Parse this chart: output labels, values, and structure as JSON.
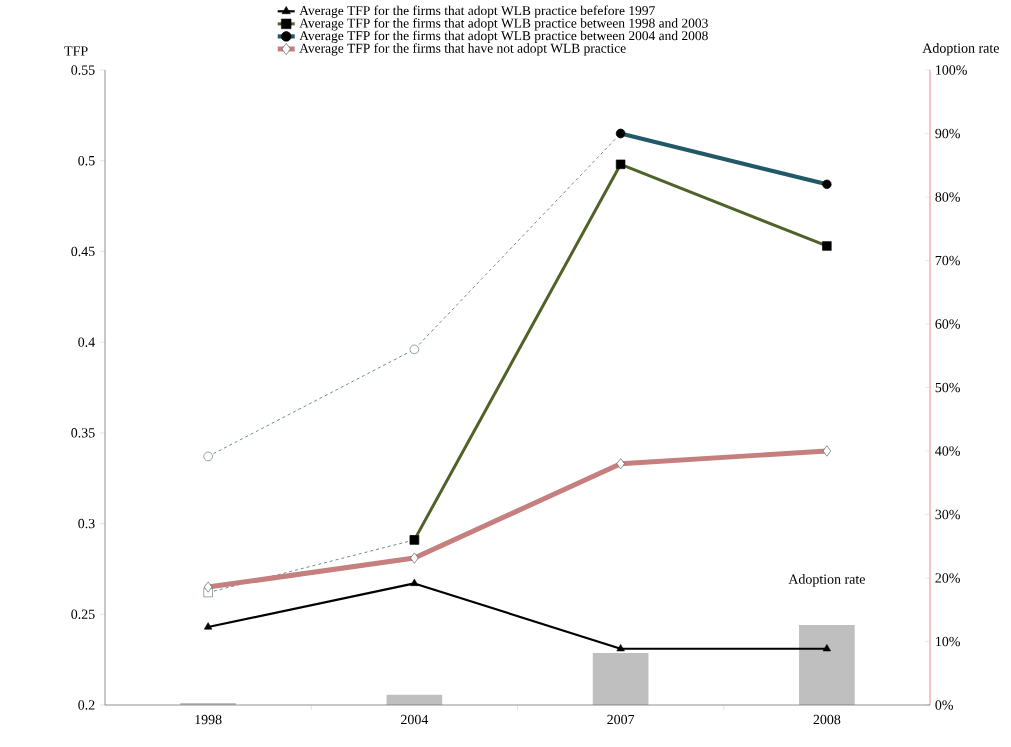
{
  "chart_data": {
    "type": "line",
    "ylabel": "TFP",
    "y2label": "Adoption rate",
    "categories": [
      "1998",
      "2004",
      "2007",
      "2008"
    ],
    "ylim": [
      0.2,
      0.55
    ],
    "yticks": [
      0.2,
      0.25,
      0.3,
      0.35,
      0.4,
      0.45,
      0.5,
      0.55
    ],
    "y2lim": [
      0,
      100
    ],
    "y2ticks": [
      {
        "value": 0,
        "label": "0%"
      },
      {
        "value": 10,
        "label": "10%"
      },
      {
        "value": 20,
        "label": "20%"
      },
      {
        "value": 30,
        "label": "30%"
      },
      {
        "value": 40,
        "label": "40%"
      },
      {
        "value": 50,
        "label": "50%"
      },
      {
        "value": 60,
        "label": "60%"
      },
      {
        "value": 70,
        "label": "70%"
      },
      {
        "value": 80,
        "label": "80%"
      },
      {
        "value": 90,
        "label": "90%"
      },
      {
        "value": 100,
        "label": "100%"
      }
    ],
    "legend": "top",
    "grid": false,
    "series": [
      {
        "name": "Adoption rate",
        "type": "bar",
        "axis": "y2",
        "color": "#bfbfbf",
        "values": [
          0.3,
          1.6,
          8.2,
          12.6
        ]
      },
      {
        "color": "#4f6f5f",
        "line_style": "dashed",
        "marker": "circle",
        "values": [
          0.337,
          0.396,
          0.515,
          null
        ]
      },
      {
        "color": "#4f6f5f",
        "line_style": "dashed",
        "marker": "square",
        "values": [
          0.262,
          0.291,
          null,
          null
        ]
      },
      {
        "name": "Average TFP for the firms that  adopt WLB practice befefore 1997",
        "color": "#000000",
        "line_style": "solid",
        "marker": "triangle",
        "values": [
          0.243,
          0.267,
          0.231,
          0.231
        ]
      },
      {
        "name": "Average TFP for the firms that adopt WLB practice between 1998 and 2003",
        "color": "#4f6228",
        "line_style": "solid",
        "marker": "square",
        "values": [
          null,
          0.291,
          0.498,
          0.453
        ]
      },
      {
        "name": "Average TFP for the firms that adopt WLB practice between 2004 and 2008",
        "color": "#215967",
        "line_style": "solid",
        "marker": "circle",
        "values": [
          null,
          null,
          0.515,
          0.487
        ]
      },
      {
        "name": "Average TFP for the firms that have not adopt WLB practice",
        "color": "#c47f7e",
        "line_style": "solid",
        "marker": "diamond",
        "values": [
          0.265,
          0.281,
          0.333,
          0.34
        ]
      }
    ]
  }
}
